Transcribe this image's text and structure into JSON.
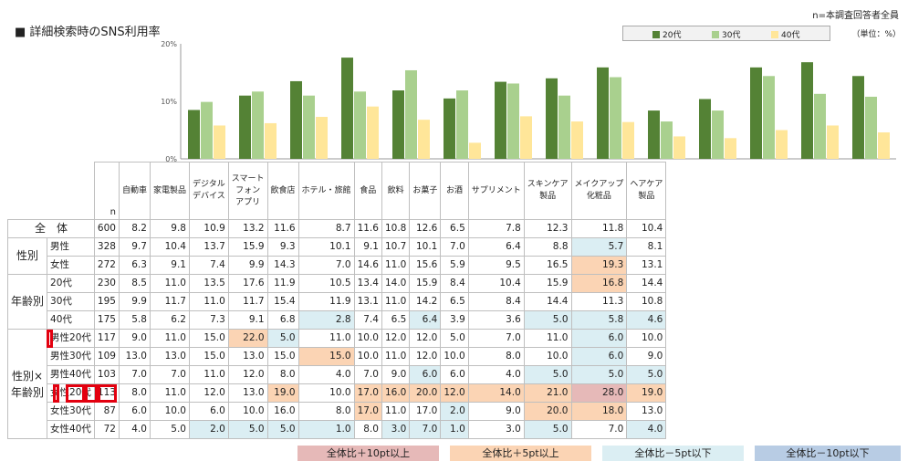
{
  "header": {
    "title": "■ 詳細検索時のSNS利用率",
    "note": "n=本調査回答者全員",
    "unit": "（単位：%）"
  },
  "chart_data": {
    "type": "bar",
    "title": "詳細検索時のSNS利用率",
    "categories": [
      "自動車",
      "家電製品",
      "デジタルデバイス",
      "スマートフォンアプリ",
      "飲食店",
      "ホテル・旅館",
      "食品",
      "飲料",
      "お菓子",
      "お酒",
      "サプリメント",
      "スキンケア製品",
      "メイクアップ化粧品",
      "ヘアケア製品"
    ],
    "series": [
      {
        "name": "20代",
        "color": "#548235",
        "values": [
          8.5,
          11.0,
          13.5,
          17.6,
          11.9,
          10.5,
          13.4,
          14.0,
          15.9,
          8.4,
          10.4,
          15.9,
          16.8,
          14.4
        ]
      },
      {
        "name": "30代",
        "color": "#a9d08e",
        "values": [
          9.9,
          11.7,
          11.0,
          11.7,
          15.4,
          11.9,
          13.1,
          11.0,
          14.2,
          6.5,
          8.4,
          14.4,
          11.3,
          10.8
        ]
      },
      {
        "name": "40代",
        "color": "#ffe699",
        "values": [
          5.8,
          6.2,
          7.3,
          9.1,
          6.8,
          2.8,
          7.4,
          6.5,
          6.4,
          3.9,
          3.6,
          5.0,
          5.8,
          4.6
        ]
      }
    ],
    "ylim": [
      0,
      20
    ],
    "yticks": [
      "0%",
      "10%",
      "20%"
    ],
    "legend_position": "top-right"
  },
  "table": {
    "n_label": "n",
    "headers": [
      [
        "自動車"
      ],
      [
        "家電製品"
      ],
      [
        "デジタル",
        "デバイス"
      ],
      [
        "スマート",
        "フォン",
        "アプリ"
      ],
      [
        "飲食店"
      ],
      [
        "ホテル・旅館"
      ],
      [
        "食品"
      ],
      [
        "飲料"
      ],
      [
        "お菓子"
      ],
      [
        "お酒"
      ],
      [
        "サプリメント"
      ],
      [
        "スキンケア",
        "製品"
      ],
      [
        "メイクアップ",
        "化粧品"
      ],
      [
        "ヘアケア",
        "製品"
      ]
    ],
    "groups": {
      "gender": "性別",
      "age": "年齢別",
      "ga1": "性別×",
      "ga2": "年齢別"
    },
    "rows": [
      {
        "label": "全　体",
        "n": "600",
        "vals": [
          "8.2",
          "9.8",
          "10.9",
          "13.2",
          "11.6",
          "8.7",
          "11.6",
          "10.8",
          "12.6",
          "6.5",
          "7.8",
          "12.3",
          "11.8",
          "10.4"
        ]
      },
      {
        "label": "男性",
        "n": "328",
        "vals": [
          "9.7",
          "10.4",
          "13.7",
          "15.9",
          "9.3",
          "10.1",
          "9.1",
          "10.7",
          "10.1",
          "7.0",
          "6.4",
          "8.8",
          "5.7",
          "8.1"
        ]
      },
      {
        "label": "女性",
        "n": "272",
        "vals": [
          "6.3",
          "9.1",
          "7.4",
          "9.9",
          "14.3",
          "7.0",
          "14.6",
          "11.0",
          "15.6",
          "5.9",
          "9.5",
          "16.5",
          "19.3",
          "13.1"
        ]
      },
      {
        "label": "20代",
        "n": "230",
        "vals": [
          "8.5",
          "11.0",
          "13.5",
          "17.6",
          "11.9",
          "10.5",
          "13.4",
          "14.0",
          "15.9",
          "8.4",
          "10.4",
          "15.9",
          "16.8",
          "14.4"
        ]
      },
      {
        "label": "30代",
        "n": "195",
        "vals": [
          "9.9",
          "11.7",
          "11.0",
          "11.7",
          "15.4",
          "11.9",
          "13.1",
          "11.0",
          "14.2",
          "6.5",
          "8.4",
          "14.4",
          "11.3",
          "10.8"
        ]
      },
      {
        "label": "40代",
        "n": "175",
        "vals": [
          "5.8",
          "6.2",
          "7.3",
          "9.1",
          "6.8",
          "2.8",
          "7.4",
          "6.5",
          "6.4",
          "3.9",
          "3.6",
          "5.0",
          "5.8",
          "4.6"
        ]
      },
      {
        "label": "男性20代",
        "n": "117",
        "vals": [
          "9.0",
          "11.0",
          "15.0",
          "22.0",
          "5.0",
          "11.0",
          "10.0",
          "12.0",
          "12.0",
          "5.0",
          "7.0",
          "11.0",
          "6.0",
          "10.0"
        ]
      },
      {
        "label": "男性30代",
        "n": "109",
        "vals": [
          "13.0",
          "13.0",
          "15.0",
          "13.0",
          "15.0",
          "15.0",
          "10.0",
          "11.0",
          "12.0",
          "10.0",
          "8.0",
          "10.0",
          "6.0",
          "9.0"
        ]
      },
      {
        "label": "男性40代",
        "n": "103",
        "vals": [
          "7.0",
          "7.0",
          "11.0",
          "12.0",
          "8.0",
          "4.0",
          "7.0",
          "9.0",
          "6.0",
          "6.0",
          "4.0",
          "5.0",
          "5.0",
          "5.0"
        ]
      },
      {
        "label": "女性20代",
        "n": "113",
        "vals": [
          "8.0",
          "11.0",
          "12.0",
          "13.0",
          "19.0",
          "10.0",
          "17.0",
          "16.0",
          "20.0",
          "12.0",
          "14.0",
          "21.0",
          "28.0",
          "19.0"
        ]
      },
      {
        "label": "女性30代",
        "n": "87",
        "vals": [
          "6.0",
          "10.0",
          "6.0",
          "10.0",
          "16.0",
          "8.0",
          "17.0",
          "11.0",
          "17.0",
          "2.0",
          "9.0",
          "20.0",
          "18.0",
          "13.0"
        ]
      },
      {
        "label": "女性40代",
        "n": "72",
        "vals": [
          "4.0",
          "5.0",
          "2.0",
          "5.0",
          "5.0",
          "1.0",
          "8.0",
          "3.0",
          "7.0",
          "1.0",
          "3.0",
          "5.0",
          "7.0",
          "4.0"
        ]
      }
    ]
  },
  "bottom_legend": [
    "全体比＋10pt以上",
    "全体比＋5pt以上",
    "全体比－5pt以下",
    "全体比－10pt以下"
  ],
  "colors": {
    "pink": "#e6b9b8",
    "peach": "#fbd4b4",
    "ltblue": "#dbeef3",
    "blue": "#b8cce4",
    "highlight": "#e3000f"
  }
}
